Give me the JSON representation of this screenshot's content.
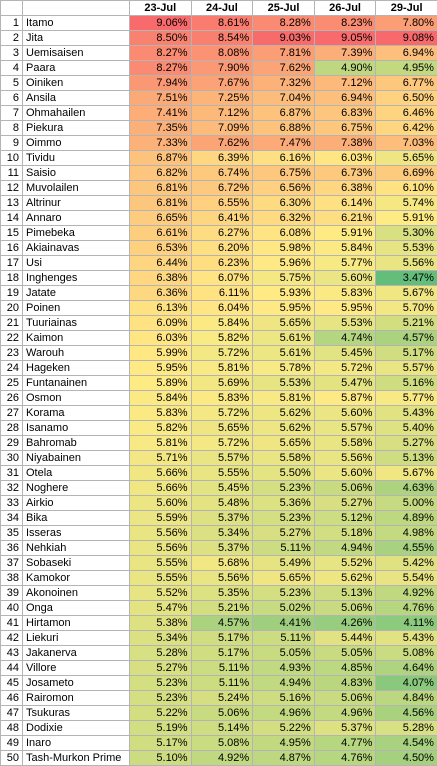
{
  "headers": [
    "23-Jul",
    "24-Jul",
    "25-Jul",
    "26-Jul",
    "29-Jul"
  ],
  "rows": [
    {
      "n": "1",
      "name": "Itamo",
      "v": [
        "9.06%",
        "8.61%",
        "8.28%",
        "8.23%",
        "7.80%"
      ]
    },
    {
      "n": "2",
      "name": "Jita",
      "v": [
        "8.50%",
        "8.54%",
        "9.03%",
        "9.05%",
        "9.08%"
      ]
    },
    {
      "n": "3",
      "name": "Uemisaisen",
      "v": [
        "8.27%",
        "8.08%",
        "7.81%",
        "7.39%",
        "6.94%"
      ]
    },
    {
      "n": "4",
      "name": "Paara",
      "v": [
        "8.27%",
        "7.90%",
        "7.62%",
        "4.90%",
        "4.95%"
      ]
    },
    {
      "n": "5",
      "name": "Oiniken",
      "v": [
        "7.94%",
        "7.67%",
        "7.32%",
        "7.12%",
        "6.77%"
      ]
    },
    {
      "n": "6",
      "name": "Ansila",
      "v": [
        "7.51%",
        "7.25%",
        "7.04%",
        "6.94%",
        "6.50%"
      ]
    },
    {
      "n": "7",
      "name": "Ohmahailen",
      "v": [
        "7.41%",
        "7.12%",
        "6.87%",
        "6.83%",
        "6.46%"
      ]
    },
    {
      "n": "8",
      "name": "Piekura",
      "v": [
        "7.35%",
        "7.09%",
        "6.88%",
        "6.75%",
        "6.42%"
      ]
    },
    {
      "n": "9",
      "name": "Oimmo",
      "v": [
        "7.33%",
        "7.62%",
        "7.47%",
        "7.38%",
        "7.03%"
      ]
    },
    {
      "n": "10",
      "name": "Tividu",
      "v": [
        "6.87%",
        "6.39%",
        "6.16%",
        "6.03%",
        "5.65%"
      ]
    },
    {
      "n": "11",
      "name": "Saisio",
      "v": [
        "6.82%",
        "6.74%",
        "6.75%",
        "6.73%",
        "6.69%"
      ]
    },
    {
      "n": "12",
      "name": "Muvolailen",
      "v": [
        "6.81%",
        "6.72%",
        "6.56%",
        "6.38%",
        "6.10%"
      ]
    },
    {
      "n": "13",
      "name": "Altrinur",
      "v": [
        "6.81%",
        "6.55%",
        "6.30%",
        "6.14%",
        "5.74%"
      ]
    },
    {
      "n": "14",
      "name": "Annaro",
      "v": [
        "6.65%",
        "6.41%",
        "6.32%",
        "6.21%",
        "5.91%"
      ]
    },
    {
      "n": "15",
      "name": "Pimebeka",
      "v": [
        "6.61%",
        "6.27%",
        "6.08%",
        "5.91%",
        "5.30%"
      ]
    },
    {
      "n": "16",
      "name": "Akiainavas",
      "v": [
        "6.53%",
        "6.20%",
        "5.98%",
        "5.84%",
        "5.53%"
      ]
    },
    {
      "n": "17",
      "name": "Usi",
      "v": [
        "6.44%",
        "6.23%",
        "5.96%",
        "5.77%",
        "5.56%"
      ]
    },
    {
      "n": "18",
      "name": "Inghenges",
      "v": [
        "6.38%",
        "6.07%",
        "5.75%",
        "5.60%",
        "3.47%"
      ]
    },
    {
      "n": "19",
      "name": "Jatate",
      "v": [
        "6.36%",
        "6.11%",
        "5.93%",
        "5.83%",
        "5.67%"
      ]
    },
    {
      "n": "20",
      "name": "Poinen",
      "v": [
        "6.13%",
        "6.04%",
        "5.95%",
        "5.95%",
        "5.70%"
      ]
    },
    {
      "n": "21",
      "name": "Tuuriainas",
      "v": [
        "6.09%",
        "5.84%",
        "5.65%",
        "5.53%",
        "5.21%"
      ]
    },
    {
      "n": "22",
      "name": "Kaimon",
      "v": [
        "6.03%",
        "5.82%",
        "5.61%",
        "4.74%",
        "4.57%"
      ]
    },
    {
      "n": "23",
      "name": "Warouh",
      "v": [
        "5.99%",
        "5.72%",
        "5.61%",
        "5.45%",
        "5.17%"
      ]
    },
    {
      "n": "24",
      "name": "Hageken",
      "v": [
        "5.95%",
        "5.81%",
        "5.78%",
        "5.72%",
        "5.57%"
      ]
    },
    {
      "n": "25",
      "name": "Funtanainen",
      "v": [
        "5.89%",
        "5.69%",
        "5.53%",
        "5.47%",
        "5.16%"
      ]
    },
    {
      "n": "26",
      "name": "Osmon",
      "v": [
        "5.84%",
        "5.83%",
        "5.81%",
        "5.87%",
        "5.77%"
      ]
    },
    {
      "n": "27",
      "name": "Korama",
      "v": [
        "5.83%",
        "5.72%",
        "5.62%",
        "5.60%",
        "5.43%"
      ]
    },
    {
      "n": "28",
      "name": "Isanamo",
      "v": [
        "5.82%",
        "5.65%",
        "5.62%",
        "5.57%",
        "5.40%"
      ]
    },
    {
      "n": "29",
      "name": "Bahromab",
      "v": [
        "5.81%",
        "5.72%",
        "5.65%",
        "5.58%",
        "5.27%"
      ]
    },
    {
      "n": "30",
      "name": "Niyabainen",
      "v": [
        "5.71%",
        "5.57%",
        "5.58%",
        "5.56%",
        "5.13%"
      ]
    },
    {
      "n": "31",
      "name": "Otela",
      "v": [
        "5.66%",
        "5.55%",
        "5.50%",
        "5.60%",
        "5.67%"
      ]
    },
    {
      "n": "32",
      "name": "Noghere",
      "v": [
        "5.66%",
        "5.45%",
        "5.23%",
        "5.06%",
        "4.63%"
      ]
    },
    {
      "n": "33",
      "name": "Airkio",
      "v": [
        "5.60%",
        "5.48%",
        "5.36%",
        "5.27%",
        "5.00%"
      ]
    },
    {
      "n": "34",
      "name": "Bika",
      "v": [
        "5.59%",
        "5.37%",
        "5.23%",
        "5.12%",
        "4.89%"
      ]
    },
    {
      "n": "35",
      "name": "Isseras",
      "v": [
        "5.56%",
        "5.34%",
        "5.27%",
        "5.18%",
        "4.98%"
      ]
    },
    {
      "n": "36",
      "name": "Nehkiah",
      "v": [
        "5.56%",
        "5.37%",
        "5.11%",
        "4.94%",
        "4.55%"
      ]
    },
    {
      "n": "37",
      "name": "Sobaseki",
      "v": [
        "5.55%",
        "5.68%",
        "5.49%",
        "5.52%",
        "5.42%"
      ]
    },
    {
      "n": "38",
      "name": "Kamokor",
      "v": [
        "5.55%",
        "5.56%",
        "5.65%",
        "5.62%",
        "5.54%"
      ]
    },
    {
      "n": "39",
      "name": "Akonoinen",
      "v": [
        "5.52%",
        "5.35%",
        "5.23%",
        "5.13%",
        "4.92%"
      ]
    },
    {
      "n": "40",
      "name": "Onga",
      "v": [
        "5.47%",
        "5.21%",
        "5.02%",
        "5.06%",
        "4.76%"
      ]
    },
    {
      "n": "41",
      "name": "Hirtamon",
      "v": [
        "5.38%",
        "4.57%",
        "4.41%",
        "4.26%",
        "4.11%"
      ]
    },
    {
      "n": "42",
      "name": "Liekuri",
      "v": [
        "5.34%",
        "5.17%",
        "5.11%",
        "5.44%",
        "5.43%"
      ]
    },
    {
      "n": "43",
      "name": "Jakanerva",
      "v": [
        "5.28%",
        "5.17%",
        "5.05%",
        "5.05%",
        "5.08%"
      ]
    },
    {
      "n": "44",
      "name": "Villore",
      "v": [
        "5.27%",
        "5.11%",
        "4.93%",
        "4.85%",
        "4.64%"
      ]
    },
    {
      "n": "45",
      "name": "Josameto",
      "v": [
        "5.23%",
        "5.11%",
        "4.94%",
        "4.83%",
        "4.07%"
      ]
    },
    {
      "n": "46",
      "name": "Rairomon",
      "v": [
        "5.23%",
        "5.24%",
        "5.16%",
        "5.06%",
        "4.84%"
      ]
    },
    {
      "n": "47",
      "name": "Tsukuras",
      "v": [
        "5.22%",
        "5.06%",
        "4.96%",
        "4.96%",
        "4.56%"
      ]
    },
    {
      "n": "48",
      "name": "Dodixie",
      "v": [
        "5.19%",
        "5.14%",
        "5.22%",
        "5.37%",
        "5.28%"
      ]
    },
    {
      "n": "49",
      "name": "Inaro",
      "v": [
        "5.17%",
        "5.08%",
        "4.95%",
        "4.77%",
        "4.54%"
      ]
    },
    {
      "n": "50",
      "name": "Tash-Murkon Prime",
      "v": [
        "5.10%",
        "4.92%",
        "4.87%",
        "4.76%",
        "4.50%"
      ]
    }
  ]
}
